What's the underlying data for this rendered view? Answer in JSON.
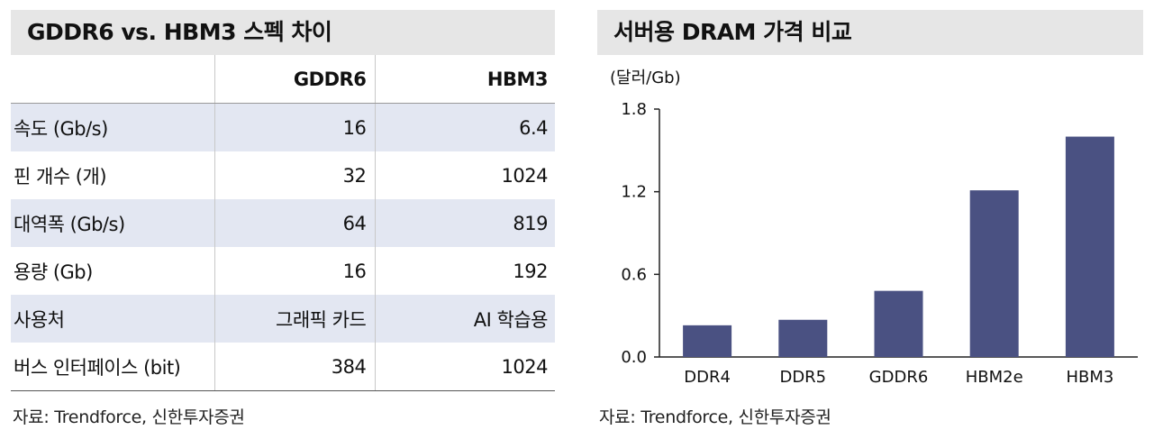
{
  "left": {
    "title": "GDDR6 vs. HBM3 스펙 차이",
    "header": {
      "col1": "GDDR6",
      "col2": "HBM3"
    },
    "rows": [
      {
        "label": "속도 (Gb/s)",
        "gddr6": "16",
        "hbm3": "6.4"
      },
      {
        "label": "핀 개수 (개)",
        "gddr6": "32",
        "hbm3": "1024"
      },
      {
        "label": "대역폭 (Gb/s)",
        "gddr6": "64",
        "hbm3": "819"
      },
      {
        "label": "용량 (Gb)",
        "gddr6": "16",
        "hbm3": "192"
      },
      {
        "label": "사용처",
        "gddr6": "그래픽 카드",
        "hbm3": "AI 학습용"
      },
      {
        "label": "버스 인터페이스 (bit)",
        "gddr6": "384",
        "hbm3": "1024"
      }
    ],
    "source": "자료: Trendforce, 신한투자증권"
  },
  "right": {
    "title": "서버용 DRAM 가격 비교",
    "unit": "(달러/Gb)",
    "source": "자료: Trendforce, 신한투자증권"
  },
  "chart_data": {
    "type": "bar",
    "title": "서버용 DRAM 가격 비교",
    "ylabel": "(달러/Gb)",
    "xlabel": "",
    "categories": [
      "DDR4",
      "DDR5",
      "GDDR6",
      "HBM2e",
      "HBM3"
    ],
    "values": [
      0.23,
      0.27,
      0.48,
      1.21,
      1.6
    ],
    "ylim": [
      0,
      1.8
    ],
    "yticks": [
      "0.0",
      "0.6",
      "1.2",
      "1.8"
    ],
    "bar_color": "#4a5182",
    "grid": false,
    "legend": "none"
  }
}
